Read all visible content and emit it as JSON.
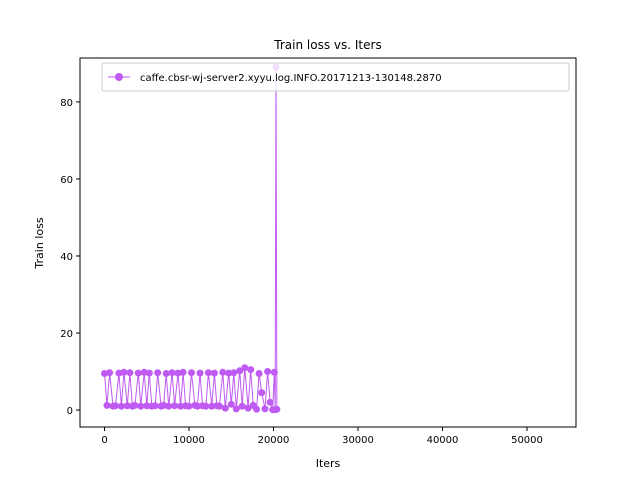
{
  "chart_data": {
    "type": "line",
    "title": "Train loss  vs. Iters",
    "xlabel": "Iters",
    "ylabel": "Train loss",
    "xlim": [
      -2900,
      55800
    ],
    "ylim": [
      -4.4,
      91.4
    ],
    "x_ticks": [
      0,
      10000,
      20000,
      30000,
      40000,
      50000
    ],
    "x_tick_labels": [
      "0",
      "10000",
      "20000",
      "30000",
      "40000",
      "50000"
    ],
    "y_ticks": [
      0,
      20,
      40,
      60,
      80
    ],
    "y_tick_labels": [
      "0",
      "20",
      "40",
      "60",
      "80"
    ],
    "grid": false,
    "legend": {
      "position": "top-right"
    },
    "series": [
      {
        "name": "caffe.cbsr-wj-server2.xyyu.log.INFO.20171213-130148.2870",
        "color": "#bf5af2",
        "marker": "circle",
        "x": [
          0,
          300,
          600,
          1000,
          1300,
          1700,
          2000,
          2300,
          2700,
          3000,
          3300,
          3600,
          4000,
          4300,
          4700,
          5000,
          5300,
          5600,
          6000,
          6300,
          6700,
          7000,
          7300,
          7600,
          8000,
          8300,
          8700,
          9000,
          9300,
          9600,
          10000,
          10300,
          10700,
          11000,
          11300,
          11600,
          12000,
          12300,
          12700,
          13000,
          13300,
          13600,
          14000,
          14300,
          14700,
          15000,
          15300,
          15600,
          16000,
          16300,
          16600,
          17000,
          17300,
          17600,
          18000,
          18300,
          18600,
          19000,
          19300,
          19600,
          19900,
          20100,
          20200,
          20300,
          20400
        ],
        "y": [
          9.5,
          1.2,
          9.7,
          1.0,
          1.1,
          9.6,
          1.0,
          9.8,
          1.1,
          9.7,
          1.0,
          1.2,
          9.6,
          1.0,
          9.8,
          1.1,
          9.6,
          1.0,
          1.1,
          9.7,
          1.0,
          1.2,
          9.5,
          1.0,
          9.7,
          1.1,
          9.6,
          1.0,
          9.8,
          1.1,
          1.0,
          9.7,
          1.2,
          1.0,
          9.6,
          1.1,
          1.0,
          9.7,
          1.0,
          9.6,
          1.1,
          1.0,
          9.8,
          0.5,
          9.6,
          1.5,
          9.7,
          0.3,
          10.2,
          1.0,
          11.0,
          0.5,
          10.5,
          1.2,
          0.2,
          9.5,
          4.5,
          0.3,
          10.0,
          2.0,
          0.1,
          9.8,
          0.1,
          89.0,
          0.2
        ]
      }
    ]
  }
}
